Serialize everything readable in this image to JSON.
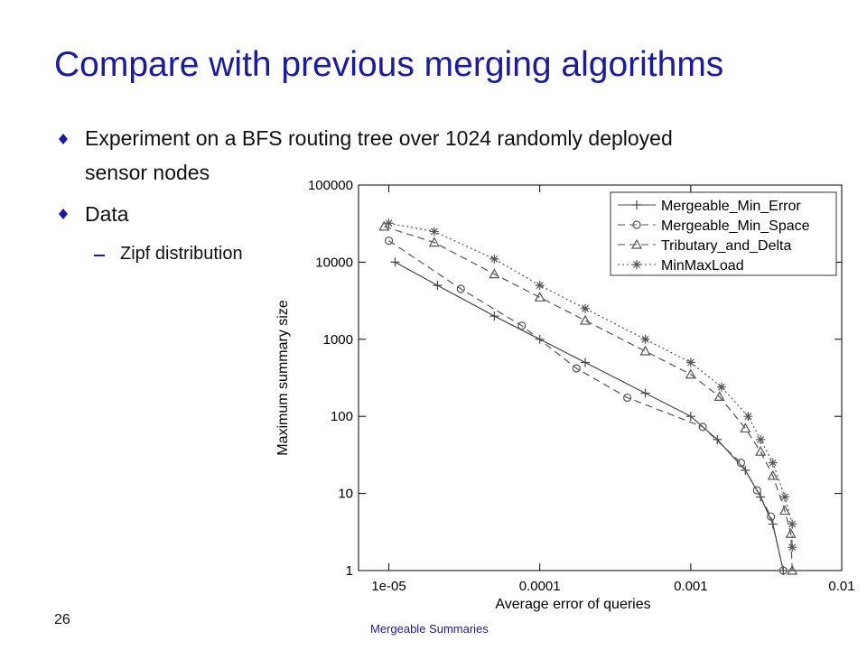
{
  "title": "Compare with previous merging algorithms",
  "bullets": [
    "Experiment on a BFS routing tree over 1024 randomly deployed",
    "sensor nodes",
    "Data"
  ],
  "sub_bullets": [
    "Zipf distribution"
  ],
  "page_number": "26",
  "footer": "Mergeable Summaries",
  "chart_data": {
    "type": "line",
    "x_label": "Average error of queries",
    "y_label": "Maximum summary size",
    "x_log": true,
    "y_log": true,
    "xlim": [
      6.3e-06,
      0.01
    ],
    "ylim": [
      1,
      100000
    ],
    "xticks": [
      {
        "value": 1e-05,
        "label": "1e-05"
      },
      0.0001,
      0.001,
      0.01
    ],
    "yticks": [
      1,
      10,
      100,
      1000,
      10000,
      100000
    ],
    "legend": "upper right",
    "series": [
      {
        "name": "Mergeable_Min_Error",
        "color": "#444444",
        "dash": "solid",
        "marker": "plus",
        "x": [
          1.1e-05,
          2.1e-05,
          5e-05,
          0.0001,
          0.0002,
          0.0005,
          0.001,
          0.0015,
          0.0023,
          0.0029,
          0.0035,
          0.0041
        ],
        "values": [
          10000,
          5000,
          2000,
          1000,
          500,
          200,
          100,
          50,
          20,
          9,
          4,
          1
        ]
      },
      {
        "name": "Mergeable_Min_Space",
        "color": "#555555",
        "dash": "dashed",
        "marker": "circle",
        "x": [
          1e-05,
          3e-05,
          7.6e-05,
          0.000175,
          0.00038,
          0.0012,
          0.00215,
          0.00275,
          0.0034,
          0.0041
        ],
        "values": [
          19000,
          4500,
          1500,
          420,
          175,
          73,
          25,
          11,
          5,
          1
        ]
      },
      {
        "name": "Tributary_and_Delta",
        "color": "#555555",
        "dash": "dashed",
        "marker": "triangle",
        "x": [
          9.3e-06,
          2e-05,
          5e-05,
          0.0001,
          0.0002,
          0.0005,
          0.001,
          0.00155,
          0.0023,
          0.0029,
          0.0035,
          0.0042,
          0.0046,
          0.0047
        ],
        "values": [
          29000,
          18000,
          7000,
          3500,
          1750,
          700,
          350,
          180,
          70,
          35,
          17,
          6,
          3,
          1
        ]
      },
      {
        "name": "MinMaxLoad",
        "color": "#555555",
        "dash": "dotted",
        "marker": "star",
        "x": [
          1e-05,
          2e-05,
          5e-05,
          0.0001,
          0.0002,
          0.0005,
          0.001,
          0.0016,
          0.0024,
          0.0029,
          0.0035,
          0.0042,
          0.0047,
          0.0047
        ],
        "values": [
          32000,
          25000,
          11000,
          5000,
          2500,
          1000,
          500,
          240,
          100,
          50,
          25,
          9,
          4,
          2
        ]
      }
    ]
  }
}
